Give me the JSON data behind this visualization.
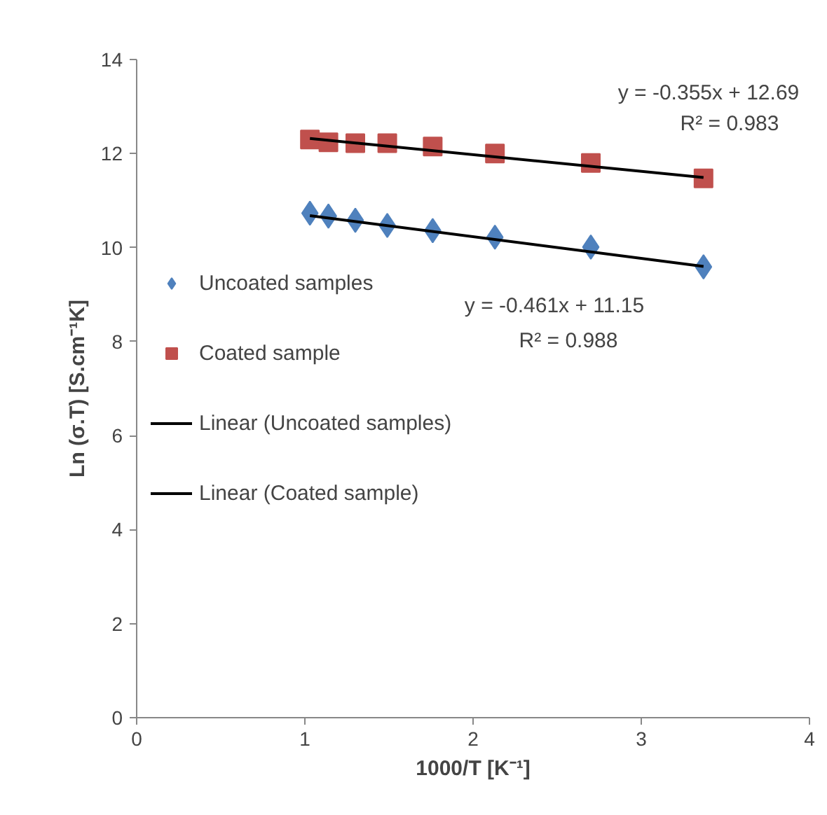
{
  "chart_data": {
    "type": "scatter",
    "xlabel": "1000/T [K⁻¹]",
    "ylabel": "Ln (σ.T) [S.cm⁻¹K]",
    "xlim": [
      0,
      4
    ],
    "ylim": [
      0,
      14
    ],
    "xticks": [
      0,
      1,
      2,
      3,
      4
    ],
    "yticks": [
      0,
      2,
      4,
      6,
      8,
      10,
      12,
      14
    ],
    "grid": false,
    "legend": "left",
    "series": [
      {
        "name": "Uncoated samples",
        "marker": "diamond",
        "color": "#4f81bd",
        "x": [
          1.03,
          1.14,
          1.3,
          1.49,
          1.76,
          2.13,
          2.7,
          3.37
        ],
        "values": [
          10.73,
          10.67,
          10.58,
          10.47,
          10.36,
          10.22,
          10.01,
          9.59
        ]
      },
      {
        "name": "Coated sample",
        "marker": "square",
        "color": "#c0504d",
        "x": [
          1.03,
          1.14,
          1.3,
          1.49,
          1.76,
          2.13,
          2.7,
          3.37
        ],
        "values": [
          12.3,
          12.24,
          12.22,
          12.22,
          12.15,
          12.0,
          11.8,
          11.47
        ]
      },
      {
        "name": "Linear (Uncoated samples)",
        "type": "line",
        "color": "#000000",
        "x": [
          1.03,
          3.37
        ],
        "values": [
          10.68,
          9.6
        ]
      },
      {
        "name": "Linear (Coated sample)",
        "type": "line",
        "color": "#000000",
        "x": [
          1.03,
          3.37
        ],
        "values": [
          12.32,
          11.49
        ]
      }
    ],
    "annotations": [
      "y = -0.355x + 12.69",
      "R² = 0.983",
      "y = -0.461x + 11.15",
      "R² = 0.988"
    ]
  }
}
